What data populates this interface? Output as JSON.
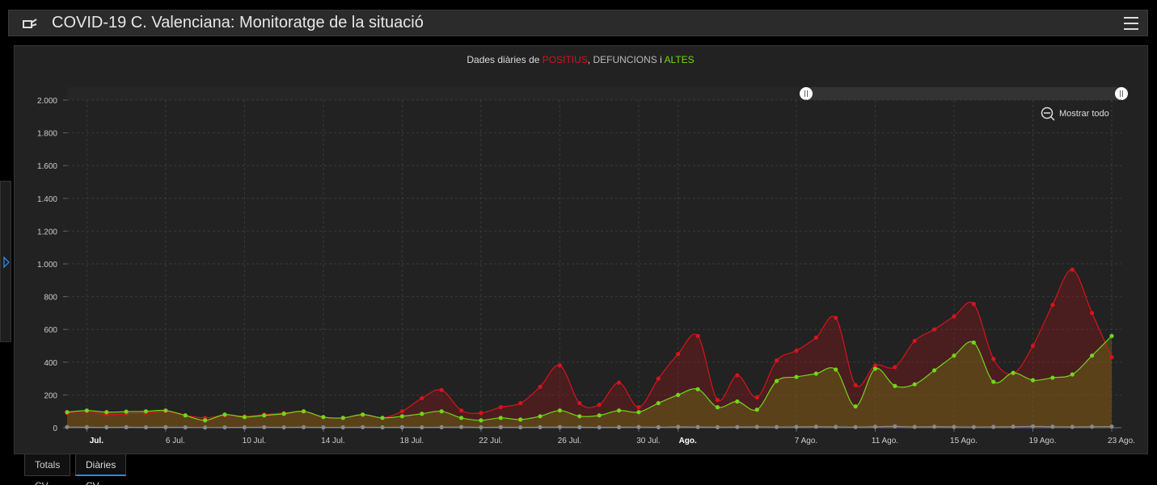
{
  "header": {
    "title": "COVID-19 C. Valenciana: Monitoratge de la situació"
  },
  "tabs": [
    "Totals CV",
    "Diàries CV"
  ],
  "active_tab": 1,
  "zoom_button": "Mostrar todo",
  "chart_data": {
    "type": "line",
    "title_prefix": "Dades diàries de",
    "title_joiners": [
      ",",
      "i"
    ],
    "categories": [
      null,
      "Jul.",
      null,
      null,
      null,
      "6 Jul.",
      null,
      null,
      null,
      "10 Jul.",
      null,
      null,
      null,
      "14 Jul.",
      null,
      null,
      null,
      "18 Jul.",
      null,
      null,
      null,
      "22 Jul.",
      null,
      null,
      null,
      "26 Jul.",
      null,
      null,
      null,
      "30 Jul.",
      null,
      "Ago.",
      null,
      null,
      null,
      null,
      null,
      "7 Ago.",
      null,
      null,
      null,
      "11 Ago.",
      null,
      null,
      null,
      "15 Ago.",
      null,
      null,
      null,
      "19 Ago.",
      null,
      null,
      null,
      "23 Ago."
    ],
    "series": [
      {
        "name": "POSITIUS",
        "color": "#d4151c",
        "area": "rgba(150,20,25,0.35)",
        "values": [
          90,
          100,
          80,
          85,
          90,
          100,
          75,
          60,
          75,
          70,
          80,
          90,
          100,
          65,
          60,
          80,
          60,
          100,
          180,
          230,
          105,
          90,
          125,
          150,
          250,
          380,
          150,
          140,
          275,
          125,
          300,
          450,
          560,
          170,
          320,
          185,
          410,
          470,
          550,
          670,
          260,
          380,
          370,
          530,
          600,
          680,
          755,
          420,
          330,
          500,
          750,
          965,
          700,
          430
        ]
      },
      {
        "name": "DEFUNCIONS",
        "color": "#8a8a8a",
        "area": "rgba(120,120,120,0.2)",
        "values": [
          4,
          3,
          2,
          3,
          2,
          3,
          2,
          1,
          2,
          2,
          3,
          2,
          3,
          2,
          2,
          3,
          2,
          3,
          2,
          3,
          4,
          2,
          3,
          2,
          3,
          4,
          3,
          2,
          3,
          4,
          3,
          5,
          4,
          3,
          4,
          5,
          4,
          5,
          6,
          5,
          4,
          6,
          8,
          5,
          6,
          5,
          4,
          5,
          6,
          8,
          6,
          5,
          6,
          7
        ]
      },
      {
        "name": "ALTES",
        "color": "#72d61a",
        "area": "rgba(110,110,20,0.45)",
        "values": [
          95,
          105,
          95,
          98,
          100,
          105,
          75,
          45,
          80,
          65,
          75,
          85,
          100,
          65,
          60,
          80,
          60,
          70,
          85,
          100,
          60,
          45,
          60,
          50,
          70,
          105,
          70,
          75,
          105,
          95,
          150,
          200,
          235,
          125,
          160,
          110,
          285,
          310,
          330,
          355,
          130,
          360,
          255,
          265,
          350,
          440,
          520,
          280,
          335,
          290,
          305,
          325,
          440,
          560
        ]
      }
    ],
    "ylim": [
      0,
      2000
    ],
    "yticks": [
      0,
      200,
      400,
      600,
      800,
      {
        "value": 1000,
        "label": "1.000"
      },
      {
        "value": 1200,
        "label": "1.200"
      },
      {
        "value": 1400,
        "label": "1.400"
      },
      {
        "value": 1600,
        "label": "1.600"
      },
      {
        "value": 1800,
        "label": "1.800"
      },
      {
        "value": 2000,
        "label": "2.000"
      }
    ],
    "grid": true
  }
}
